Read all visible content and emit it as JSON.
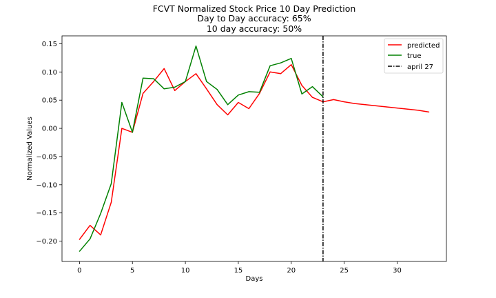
{
  "chart_data": {
    "type": "line",
    "title_lines": [
      "FCVT Normalized Stock Price 10 Day Prediction",
      "Day to Day accuracy: 65%",
      "10 day accuracy: 50%"
    ],
    "xlabel": "Days",
    "ylabel": "Normalized Values",
    "xlim": [
      -1.65,
      34.65
    ],
    "ylim": [
      -0.236,
      0.164
    ],
    "xticks": [
      0,
      5,
      10,
      15,
      20,
      25,
      30
    ],
    "yticks": [
      -0.2,
      -0.15,
      -0.1,
      -0.05,
      0.0,
      0.05,
      0.1,
      0.15
    ],
    "ytick_labels": [
      "−0.20",
      "−0.15",
      "−0.10",
      "−0.05",
      "0.00",
      "0.05",
      "0.10",
      "0.15"
    ],
    "legend_position": "upper right",
    "series": [
      {
        "name": "predicted",
        "color": "#ff0000",
        "style": "solid",
        "x": [
          0,
          1,
          2,
          3,
          4,
          5,
          6,
          7,
          8,
          9,
          10,
          11,
          12,
          13,
          14,
          15,
          16,
          17,
          18,
          19,
          20,
          21,
          22,
          23,
          24,
          25,
          26,
          27,
          28,
          29,
          30,
          31,
          32,
          33
        ],
        "y": [
          -0.197,
          -0.172,
          -0.189,
          -0.131,
          0.0,
          -0.007,
          0.062,
          0.083,
          0.106,
          0.067,
          0.083,
          0.097,
          0.07,
          0.042,
          0.024,
          0.046,
          0.035,
          0.062,
          0.1,
          0.097,
          0.113,
          0.076,
          0.055,
          0.047,
          0.051,
          0.047,
          0.044,
          0.042,
          0.04,
          0.038,
          0.036,
          0.034,
          0.032,
          0.029
        ]
      },
      {
        "name": "true",
        "color": "#008000",
        "style": "solid",
        "x": [
          0,
          1,
          2,
          3,
          4,
          5,
          6,
          7,
          8,
          9,
          10,
          11,
          12,
          13,
          14,
          15,
          16,
          17,
          18,
          19,
          20,
          21,
          22,
          23
        ],
        "y": [
          -0.218,
          -0.196,
          -0.151,
          -0.098,
          0.046,
          -0.007,
          0.089,
          0.088,
          0.07,
          0.073,
          0.083,
          0.146,
          0.083,
          0.069,
          0.042,
          0.059,
          0.065,
          0.064,
          0.111,
          0.116,
          0.124,
          0.061,
          0.074,
          0.056
        ]
      },
      {
        "name": "april 27",
        "color": "#000000",
        "style": "dashdot",
        "vertical_x": 23
      }
    ]
  }
}
